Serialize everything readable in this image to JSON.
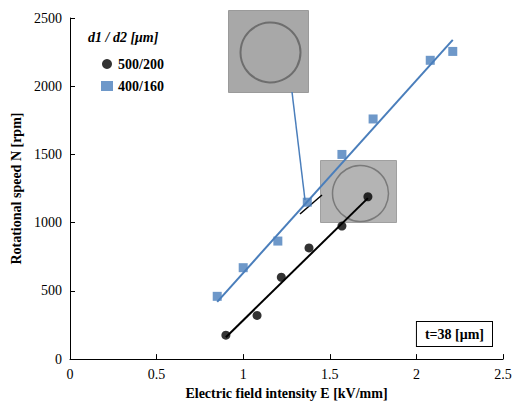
{
  "chart_data": {
    "type": "scatter",
    "x_label": "Electric field intensity E [kV/mm]",
    "y_label": "Rotational speed N [rpm]",
    "legend_title": "d1 / d2 [μm]",
    "annotations": [
      "t=38 [μm]"
    ],
    "xlim": [
      0,
      2.5
    ],
    "xticks": [
      0,
      0.5,
      1,
      1.5,
      2,
      2.5
    ],
    "ylim": [
      0,
      2500
    ],
    "yticks": [
      0,
      500,
      1000,
      1500,
      2000,
      2500
    ],
    "grid": false,
    "legend": "upper left",
    "series": [
      {
        "name": "500/200",
        "color": "#000000",
        "marker": "circle",
        "x": [
          0.9,
          1.08,
          1.22,
          1.38,
          1.57,
          1.72
        ],
        "values": [
          175,
          320,
          600,
          815,
          975,
          1190
        ],
        "fit": {
          "x": [
            0.9,
            1.72
          ],
          "values": [
            160,
            1180
          ]
        }
      },
      {
        "name": "400/160",
        "color": "#4a7ebb",
        "marker": "square",
        "x": [
          0.85,
          1.0,
          1.2,
          1.37,
          1.57,
          1.75,
          2.08,
          2.21
        ],
        "values": [
          460,
          670,
          865,
          1150,
          1500,
          1760,
          2190,
          2255
        ],
        "fit": {
          "x": [
            0.85,
            2.21
          ],
          "values": [
            420,
            2340
          ]
        }
      }
    ]
  }
}
